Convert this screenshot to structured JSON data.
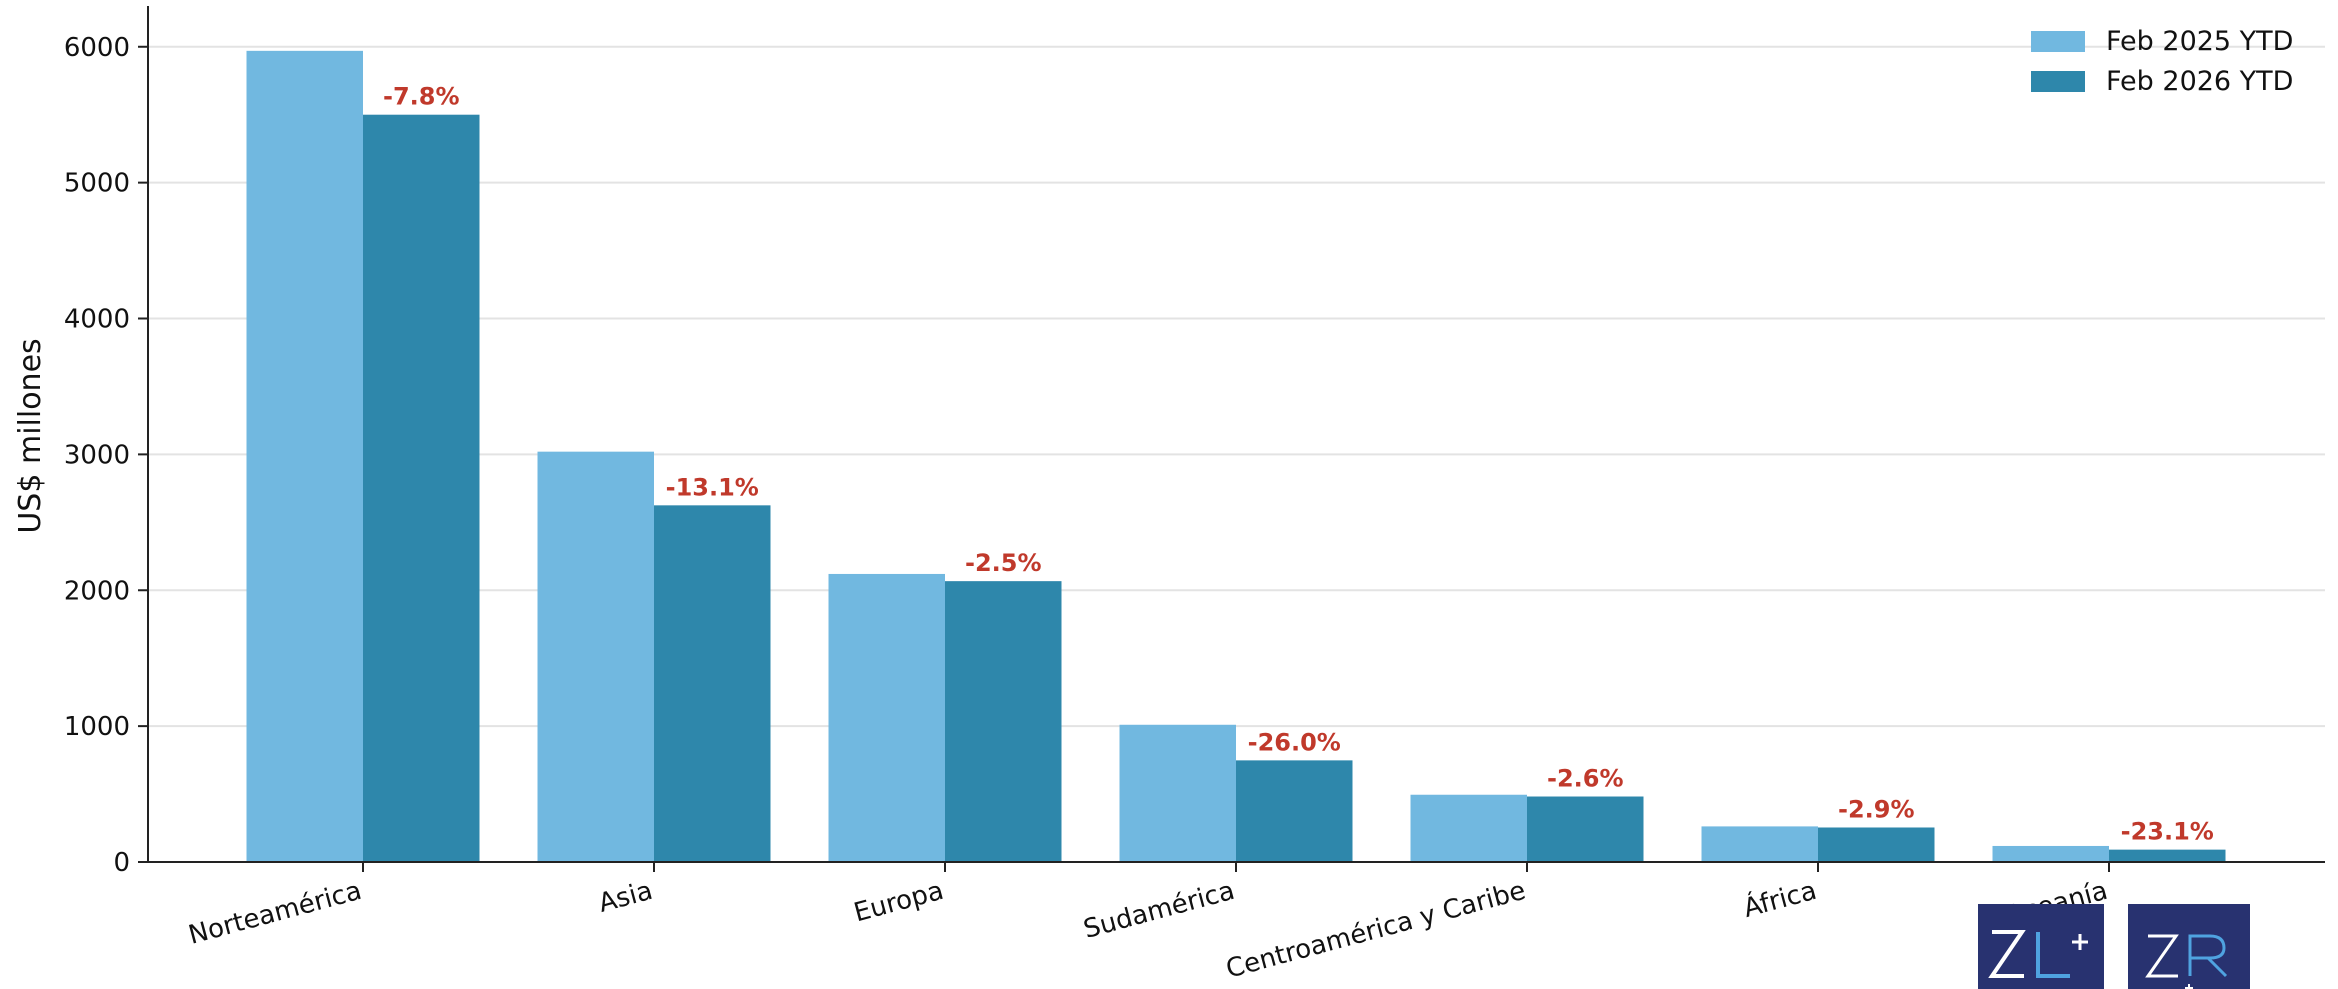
{
  "chart_data": {
    "type": "bar",
    "categories": [
      "Norteamérica",
      "Asia",
      "Europa",
      "Sudamérica",
      "Centroamérica y Caribe",
      "África",
      "Oceanía"
    ],
    "series": [
      {
        "name": "Feb 2025 YTD",
        "values": [
          5970,
          3020,
          2120,
          1010,
          495,
          262,
          118
        ],
        "color": "#71b8e0"
      },
      {
        "name": "Feb 2026 YTD",
        "values": [
          5500,
          2625,
          2067,
          748,
          482,
          254,
          91
        ],
        "color": "#2e87ab"
      }
    ],
    "bar_labels": [
      "-7.8%",
      "-13.1%",
      "-2.5%",
      "-26.0%",
      "-2.6%",
      "-2.9%",
      "-23.1%"
    ],
    "bar_label_color": "#c0392b",
    "ylabel": "US$ millones",
    "ylim": [
      0,
      6300
    ],
    "yticks": [
      0,
      1000,
      2000,
      3000,
      4000,
      5000,
      6000
    ],
    "grid": true,
    "legend_position": "top-right"
  },
  "logos": [
    {
      "icon": "zl-plus-logo",
      "text": "ZL+",
      "bg": "#283270"
    },
    {
      "icon": "zr-logo",
      "text": "ZR",
      "bg": "#283270"
    }
  ]
}
